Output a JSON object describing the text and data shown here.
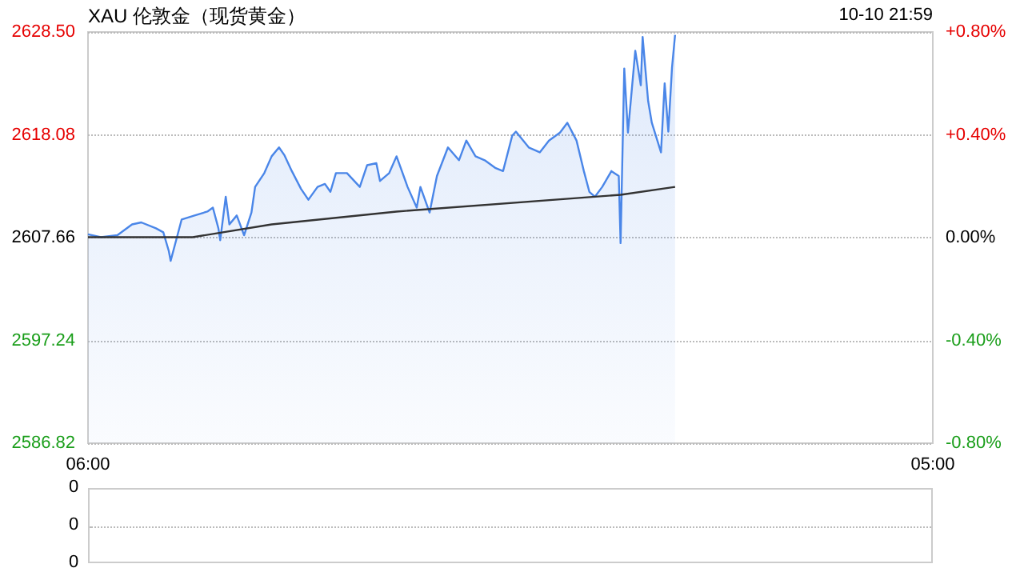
{
  "chart_data": [
    {
      "type": "area",
      "title": "XAU 伦敦金（现货黄金）",
      "annotations": [
        "10-10 21:59"
      ],
      "xlim": [
        "--10-10T06:00",
        "--10-11T05:00"
      ],
      "xticks": [
        {
          "value": "--10-10T06:00",
          "label": "06:00"
        },
        {
          "value": "--10-11T05:00",
          "label": "05:00"
        }
      ],
      "ylim": [
        2586.82,
        2628.5
      ],
      "yticks": [
        {
          "value": 2586.82,
          "label": "2586.82"
        },
        {
          "value": 2597.24,
          "label": "2597.24"
        },
        {
          "value": 2607.66,
          "label": "2607.66"
        },
        {
          "value": 2618.08,
          "label": "2618.08"
        },
        {
          "value": 2628.5,
          "label": "2628.50"
        }
      ],
      "y2lim": [
        -0.8,
        0.8
      ],
      "y2ticks": [
        {
          "value": -0.8,
          "label": "-0.80%"
        },
        {
          "value": -0.4,
          "label": "-0.40%"
        },
        {
          "value": 0,
          "label": "0.00%"
        },
        {
          "value": 0.4,
          "label": "+0.40%"
        },
        {
          "value": 0.8,
          "label": "+0.80%"
        }
      ],
      "grid": "y",
      "marker": "none",
      "line_style": "solid",
      "series": [
        {
          "color": "#4a86e8",
          "x": [
            "--10-10T06:00",
            "--10-10T06:21",
            "--10-10T06:48",
            "--10-10T07:12",
            "--10-10T07:27",
            "--10-10T07:51",
            "--10-10T08:03",
            "--10-10T08:12",
            "--10-10T08:15",
            "--10-10T08:24",
            "--10-10T08:33",
            "--10-10T08:54",
            "--10-10T09:15",
            "--10-10T09:24",
            "--10-10T09:33",
            "--10-10T09:36",
            "--10-10T09:45",
            "--10-10T09:51",
            "--10-10T10:03",
            "--10-10T10:15",
            "--10-10T10:27",
            "--10-10T10:33",
            "--10-10T10:48",
            "--10-10T11:00",
            "--10-10T11:12",
            "--10-10T11:21",
            "--10-10T11:33",
            "--10-10T11:48",
            "--10-10T12:00",
            "--10-10T12:15",
            "--10-10T12:27",
            "--10-10T12:36",
            "--10-10T12:45",
            "--10-10T13:03",
            "--10-10T13:24",
            "--10-10T13:36",
            "--10-10T13:51",
            "--10-10T13:57",
            "--10-10T14:12",
            "--10-10T14:24",
            "--10-10T14:42",
            "--10-10T14:57",
            "--10-10T15:03",
            "--10-10T15:18",
            "--10-10T15:30",
            "--10-10T15:48",
            "--10-10T16:06",
            "--10-10T16:18",
            "--10-10T16:33",
            "--10-10T16:48",
            "--10-10T17:06",
            "--10-10T17:18",
            "--10-10T17:33",
            "--10-10T17:39",
            "--10-10T18:00",
            "--10-10T18:18",
            "--10-10T18:33",
            "--10-10T18:51",
            "--10-10T19:03",
            "--10-10T19:18",
            "--10-10T19:30",
            "--10-10T19:39",
            "--10-10T19:48",
            "--10-10T20:00",
            "--10-10T20:15",
            "--10-10T20:27",
            "--10-10T20:30",
            "--10-10T20:36",
            "--10-10T20:42",
            "--10-10T20:54",
            "--10-10T21:03",
            "--10-10T21:06",
            "--10-10T21:15",
            "--10-10T21:21",
            "--10-10T21:36",
            "--10-10T21:42",
            "--10-10T21:48",
            "--10-10T21:54",
            "--10-10T21:59"
          ],
          "values": [
            2608.0,
            2607.7,
            2607.9,
            2609.0,
            2609.2,
            2608.6,
            2608.2,
            2606.3,
            2605.3,
            2607.4,
            2609.5,
            2609.9,
            2610.3,
            2610.7,
            2608.6,
            2607.4,
            2611.8,
            2609.0,
            2609.9,
            2607.9,
            2610.2,
            2612.8,
            2614.2,
            2615.9,
            2616.8,
            2616.0,
            2614.4,
            2612.6,
            2611.5,
            2612.8,
            2613.1,
            2612.3,
            2614.2,
            2614.2,
            2612.8,
            2615.0,
            2615.2,
            2613.4,
            2614.2,
            2615.9,
            2612.8,
            2610.7,
            2612.8,
            2610.2,
            2613.9,
            2616.8,
            2615.5,
            2617.5,
            2615.9,
            2615.5,
            2614.7,
            2614.4,
            2618.0,
            2618.4,
            2616.8,
            2616.3,
            2617.5,
            2618.3,
            2619.3,
            2617.5,
            2614.4,
            2612.3,
            2611.8,
            2612.8,
            2614.4,
            2613.9,
            2607.1,
            2624.8,
            2618.3,
            2626.6,
            2623.1,
            2628.0,
            2621.5,
            2619.3,
            2616.3,
            2623.3,
            2618.4,
            2624.9,
            2628.2
          ]
        },
        {
          "type": "line",
          "color": "#333333",
          "x": [
            "--10-10T06:00",
            "--10-10T08:51",
            "--10-10T11:00",
            "--10-10T14:24",
            "--10-10T20:30",
            "--10-10T21:59"
          ],
          "values": [
            2607.7,
            2607.7,
            2609.0,
            2610.3,
            2612.0,
            2612.8
          ]
        }
      ]
    },
    {
      "type": "other",
      "annotations": [
        "0",
        "0",
        "0"
      ]
    }
  ]
}
